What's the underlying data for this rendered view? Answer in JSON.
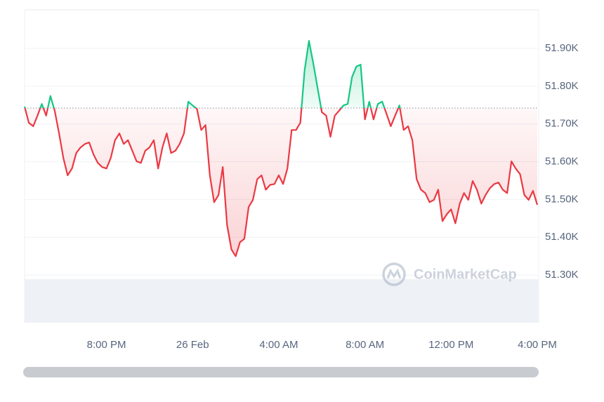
{
  "chart_data": {
    "type": "line",
    "categories": [
      null,
      null,
      null,
      null,
      null,
      null,
      null,
      null,
      null,
      null,
      null,
      null,
      null,
      null,
      null,
      null,
      null,
      null,
      null,
      "8:00 PM",
      null,
      null,
      null,
      null,
      null,
      null,
      null,
      null,
      null,
      null,
      null,
      null,
      null,
      null,
      null,
      null,
      null,
      null,
      null,
      "26 Feb",
      null,
      null,
      null,
      null,
      null,
      null,
      null,
      null,
      null,
      null,
      null,
      null,
      null,
      null,
      null,
      null,
      null,
      null,
      null,
      "4:00 AM",
      null,
      null,
      null,
      null,
      null,
      null,
      null,
      null,
      null,
      null,
      null,
      null,
      null,
      null,
      null,
      null,
      null,
      null,
      null,
      "8:00 AM",
      null,
      null,
      null,
      null,
      null,
      null,
      null,
      null,
      null,
      null,
      null,
      null,
      null,
      null,
      null,
      null,
      null,
      null,
      null,
      "12:00 PM",
      null,
      null,
      null,
      null,
      null,
      null,
      null,
      null,
      null,
      null,
      null,
      null,
      null,
      null,
      null,
      null,
      null,
      null,
      null,
      "4:00 PM"
    ],
    "values": [
      51746,
      51703,
      51694,
      51722,
      51753,
      51722,
      51774,
      51735,
      51675,
      51610,
      51564,
      51582,
      51623,
      51638,
      51647,
      51651,
      51619,
      51597,
      51586,
      51582,
      51610,
      51657,
      51675,
      51647,
      51657,
      51629,
      51601,
      51597,
      51629,
      51638,
      51657,
      51582,
      51638,
      51675,
      51623,
      51629,
      51647,
      51675,
      51759,
      51749,
      51740,
      51684,
      51697,
      51564,
      51493,
      51512,
      51586,
      51433,
      51368,
      51350,
      51387,
      51396,
      51480,
      51499,
      51554,
      51564,
      51526,
      51539,
      51541,
      51564,
      51541,
      51582,
      51684,
      51684,
      51703,
      51842,
      51920,
      51861,
      51796,
      51731,
      51722,
      51666,
      51722,
      51735,
      51749,
      51753,
      51824,
      51852,
      51857,
      51712,
      51759,
      51712,
      51753,
      51759,
      51727,
      51694,
      51722,
      51749,
      51684,
      51694,
      51657,
      51554,
      51526,
      51517,
      51493,
      51499,
      51526,
      51443,
      51461,
      51474,
      51437,
      51489,
      51517,
      51499,
      51549,
      51526,
      51489,
      51512,
      51530,
      51541,
      51545,
      51526,
      51517,
      51601,
      51582,
      51567,
      51512,
      51499,
      51523,
      51486
    ],
    "baseline": 51742,
    "colors": {
      "up": "#16c784",
      "down": "#ea3943"
    },
    "ylim": [
      51174,
      52002
    ],
    "yticks": [
      {
        "value": 51900,
        "label": "51.90K"
      },
      {
        "value": 51800,
        "label": "51.80K"
      },
      {
        "value": 51700,
        "label": "51.70K"
      },
      {
        "value": 51600,
        "label": "51.60K"
      },
      {
        "value": 51500,
        "label": "51.50K"
      },
      {
        "value": 51400,
        "label": "51.40K"
      },
      {
        "value": 51300,
        "label": "51.30K"
      }
    ],
    "grid": true,
    "watermark": "CoinMarketCap"
  }
}
